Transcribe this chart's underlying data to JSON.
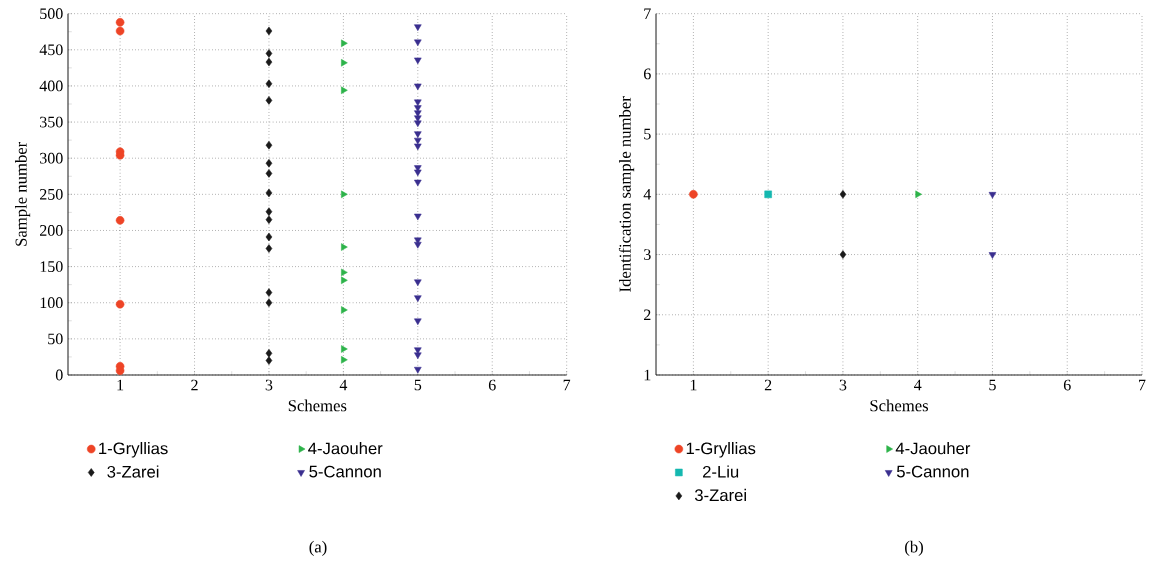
{
  "chart_data": [
    {
      "type": "scatter",
      "xlabel": "Schemes",
      "ylabel": "Sample number",
      "xlim": [
        0.3,
        7
      ],
      "xticks": [
        1,
        2,
        3,
        4,
        5,
        6,
        7
      ],
      "ylim": [
        0,
        500
      ],
      "yticks": [
        0,
        50,
        100,
        150,
        200,
        250,
        300,
        350,
        400,
        450,
        500
      ],
      "grid": true,
      "legend": "bottom",
      "annotations": [
        "(a)"
      ],
      "series": [
        {
          "name": "1-Gryllias",
          "color": "#ee4426",
          "marker": "circle",
          "x": [
            1,
            1,
            1,
            1,
            1,
            1,
            1,
            1
          ],
          "values": [
            488,
            476,
            309,
            304,
            214,
            98,
            12,
            6
          ]
        },
        {
          "name": "3-Zarei",
          "color": "#1a1a1a",
          "marker": "diamond",
          "x": [
            3,
            3,
            3,
            3,
            3,
            3,
            3,
            3,
            3,
            3,
            3,
            3,
            3,
            3,
            3,
            3,
            3
          ],
          "values": [
            476,
            445,
            433,
            403,
            380,
            318,
            293,
            279,
            252,
            226,
            215,
            191,
            175,
            114,
            100,
            30,
            20
          ]
        },
        {
          "name": "4-Jaouher",
          "color": "#2db34a",
          "marker": "triangle-right",
          "x": [
            4,
            4,
            4,
            4,
            4,
            4,
            4,
            4,
            4,
            4
          ],
          "values": [
            459,
            432,
            394,
            250,
            177,
            142,
            131,
            90,
            36,
            21
          ]
        },
        {
          "name": "5-Cannon",
          "color": "#3a2f8f",
          "marker": "triangle-down",
          "x": [
            5,
            5,
            5,
            5,
            5,
            5,
            5,
            5,
            5,
            5,
            5,
            5,
            5,
            5,
            5,
            5,
            5,
            5,
            5,
            5,
            5,
            5,
            5,
            5
          ],
          "values": [
            482,
            461,
            436,
            400,
            378,
            370,
            363,
            356,
            349,
            334,
            325,
            317,
            287,
            281,
            267,
            220,
            187,
            181,
            129,
            107,
            75,
            35,
            28,
            8
          ]
        }
      ]
    },
    {
      "type": "scatter",
      "xlabel": "Schemes",
      "ylabel": "Identification sample number",
      "xlim": [
        0.5,
        7
      ],
      "xticks": [
        1,
        2,
        3,
        4,
        5,
        6,
        7
      ],
      "ylim": [
        1,
        7
      ],
      "yticks": [
        1,
        2,
        3,
        4,
        5,
        6,
        7
      ],
      "grid": true,
      "legend": "bottom",
      "annotations": [
        "(b)"
      ],
      "series": [
        {
          "name": "1-Gryllias",
          "color": "#ee4426",
          "marker": "circle",
          "x": [
            1
          ],
          "values": [
            4
          ]
        },
        {
          "name": "2-Liu",
          "color": "#14b8b0",
          "marker": "square",
          "x": [
            2
          ],
          "values": [
            4
          ]
        },
        {
          "name": "3-Zarei",
          "color": "#1a1a1a",
          "marker": "diamond",
          "x": [
            3,
            3
          ],
          "values": [
            4,
            3
          ]
        },
        {
          "name": "4-Jaouher",
          "color": "#2db34a",
          "marker": "triangle-right",
          "x": [
            4
          ],
          "values": [
            4
          ]
        },
        {
          "name": "5-Cannon",
          "color": "#3a2f8f",
          "marker": "triangle-down",
          "x": [
            5,
            5
          ],
          "values": [
            4,
            3
          ]
        }
      ]
    }
  ]
}
